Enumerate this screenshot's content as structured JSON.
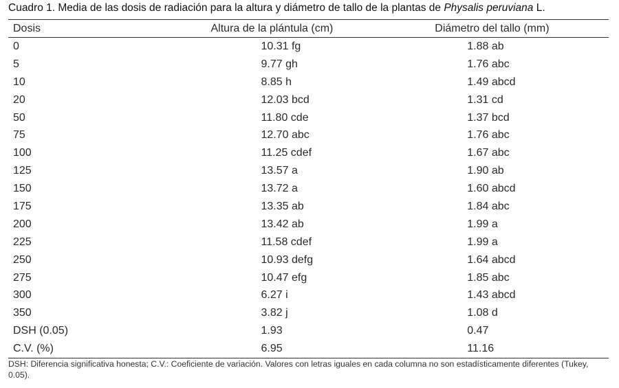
{
  "caption": {
    "prefix": "Cuadro 1. Media de las dosis de radiación para la altura y diámetro de tallo de la plantas de ",
    "species": "Physalis peruviana",
    "suffix": " L."
  },
  "table": {
    "headers": [
      "Dosis",
      "Altura de la plántula (cm)",
      "Diámetro del tallo (mm)"
    ],
    "rows": [
      [
        "0",
        "10.31 fg",
        "1.88 ab"
      ],
      [
        "5",
        "9.77 gh",
        "1.76 abc"
      ],
      [
        "10",
        "8.85 h",
        "1.49 abcd"
      ],
      [
        "20",
        "12.03 bcd",
        "1.31 cd"
      ],
      [
        "50",
        "11.80 cde",
        "1.37 bcd"
      ],
      [
        "75",
        "12.70 abc",
        "1.76 abc"
      ],
      [
        "100",
        "11.25 cdef",
        "1.67 abc"
      ],
      [
        "125",
        "13.57 a",
        "1.90 ab"
      ],
      [
        "150",
        "13.72 a",
        "1.60 abcd"
      ],
      [
        "175",
        "13.35 ab",
        "1.84 abc"
      ],
      [
        "200",
        "13.42 ab",
        "1.99 a"
      ],
      [
        "225",
        "11.58 cdef",
        "1.99 a"
      ],
      [
        "250",
        "10.93 defg",
        "1.64 abcd"
      ],
      [
        "275",
        "10.47 efg",
        "1.85 abc"
      ],
      [
        "300",
        "6.27 i",
        "1.43 abcd"
      ],
      [
        "350",
        "3.82 j",
        "1.08 d"
      ],
      [
        "DSH (0.05)",
        "1.93",
        "0.47"
      ],
      [
        "C.V. (%)",
        "6.95",
        "11.16"
      ]
    ]
  },
  "footnote": "DSH: Diferencia significativa honesta; C.V.: Coeficiente de variación. Valores con letras iguales en cada columna no son estadísticamente diferentes (Tukey, 0.05)."
}
